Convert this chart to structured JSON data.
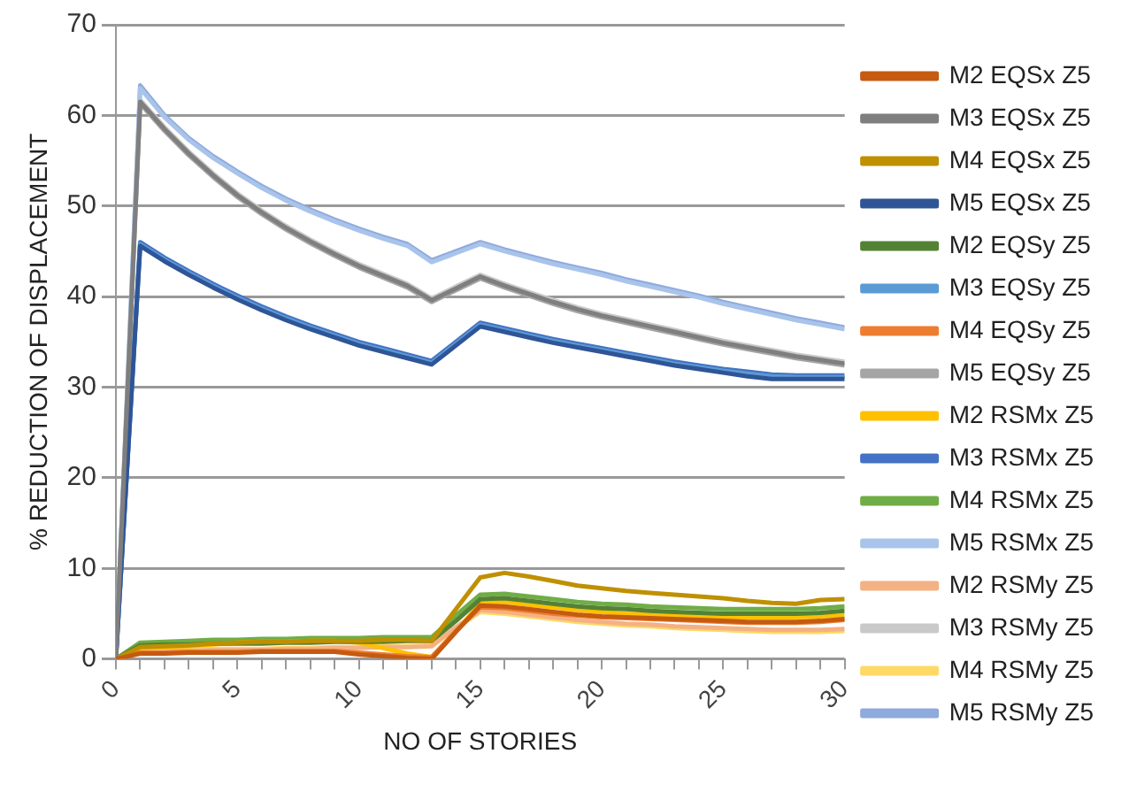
{
  "chart_data": {
    "type": "line",
    "xlabel": "NO OF STORIES",
    "ylabel": "% REDUCTION OF DISPLACEMENT",
    "x": [
      0,
      1,
      2,
      3,
      4,
      5,
      6,
      7,
      8,
      9,
      10,
      11,
      12,
      13,
      14,
      15,
      16,
      17,
      18,
      19,
      20,
      21,
      22,
      23,
      24,
      25,
      26,
      27,
      28,
      29,
      30
    ],
    "xlim": [
      0,
      30
    ],
    "xticks": [
      0,
      {
        "value": 1,
        "label": null
      },
      {
        "value": 2,
        "label": null
      },
      {
        "value": 3,
        "label": null
      },
      {
        "value": 4,
        "label": null
      },
      5,
      {
        "value": 6,
        "label": null
      },
      {
        "value": 7,
        "label": null
      },
      {
        "value": 8,
        "label": null
      },
      {
        "value": 9,
        "label": null
      },
      10,
      {
        "value": 11,
        "label": null
      },
      {
        "value": 12,
        "label": null
      },
      {
        "value": 13,
        "label": null
      },
      {
        "value": 14,
        "label": null
      },
      15,
      {
        "value": 16,
        "label": null
      },
      {
        "value": 17,
        "label": null
      },
      {
        "value": 18,
        "label": null
      },
      {
        "value": 19,
        "label": null
      },
      20,
      {
        "value": 21,
        "label": null
      },
      {
        "value": 22,
        "label": null
      },
      {
        "value": 23,
        "label": null
      },
      {
        "value": 24,
        "label": null
      },
      25,
      {
        "value": 26,
        "label": null
      },
      {
        "value": 27,
        "label": null
      },
      {
        "value": 28,
        "label": null
      },
      {
        "value": 29,
        "label": null
      },
      30
    ],
    "ylim": [
      0,
      70
    ],
    "yticks": [
      0,
      10,
      20,
      30,
      40,
      50,
      60,
      70
    ],
    "grid": "y",
    "legend": "right",
    "series": [
      {
        "name": "M2 EQSx Z5",
        "color": "#c55a11",
        "values": [
          0,
          0.6,
          0.6,
          0.7,
          0.7,
          0.7,
          0.8,
          0.8,
          0.8,
          0.8,
          0.5,
          0.3,
          0.1,
          0,
          3,
          5.9,
          5.8,
          5.5,
          5.2,
          4.9,
          4.7,
          4.6,
          4.5,
          4.4,
          4.3,
          4.2,
          4.1,
          4.1,
          4.1,
          4.2,
          4.4
        ]
      },
      {
        "name": "M3 EQSx Z5",
        "color": "#7f7f7f",
        "values": [
          0,
          61.5,
          58.5,
          55.8,
          53.4,
          51.2,
          49.3,
          47.6,
          46.1,
          44.7,
          43.4,
          42.3,
          41.2,
          39.6,
          40.9,
          42.2,
          41.2,
          40.3,
          39.4,
          38.6,
          37.9,
          37.3,
          36.7,
          36.1,
          35.5,
          34.9,
          34.4,
          33.9,
          33.4,
          33,
          32.6
        ]
      },
      {
        "name": "M4 EQSx Z5",
        "color": "#bf9000",
        "values": [
          0,
          1.3,
          1.4,
          1.5,
          1.7,
          1.8,
          1.9,
          1.9,
          2,
          2,
          2,
          2.1,
          2.1,
          2,
          5.5,
          9,
          9.5,
          9.1,
          8.6,
          8.1,
          7.8,
          7.5,
          7.3,
          7.1,
          6.9,
          6.7,
          6.4,
          6.2,
          6.1,
          6.5,
          6.6
        ]
      },
      {
        "name": "M5 EQSx Z5",
        "color": "#2f5597",
        "values": [
          0,
          45.6,
          43.9,
          42.4,
          41,
          39.7,
          38.5,
          37.4,
          36.4,
          35.5,
          34.6,
          33.9,
          33.2,
          32.5,
          34.6,
          36.7,
          36.1,
          35.5,
          34.9,
          34.4,
          33.9,
          33.4,
          32.9,
          32.4,
          32,
          31.6,
          31.2,
          30.9,
          30.9,
          30.9,
          30.9
        ]
      },
      {
        "name": "M2 EQSy Z5",
        "color": "#548235",
        "values": [
          0,
          1.5,
          1.6,
          1.6,
          1.7,
          1.7,
          1.7,
          1.8,
          1.8,
          1.9,
          1.9,
          1.9,
          2,
          2,
          4.2,
          6.6,
          6.7,
          6.4,
          6.1,
          5.8,
          5.6,
          5.5,
          5.3,
          5.2,
          5.1,
          5,
          5,
          5,
          5,
          5.1,
          5.3
        ]
      },
      {
        "name": "M3 EQSy Z5",
        "color": "#5b9bd5",
        "values": [
          0,
          45.8,
          44.1,
          42.6,
          41.2,
          39.9,
          38.7,
          37.6,
          36.6,
          35.7,
          34.8,
          34.1,
          33.4,
          32.7,
          34.8,
          36.9,
          36.3,
          35.7,
          35.1,
          34.6,
          34.1,
          33.6,
          33.1,
          32.6,
          32.2,
          31.8,
          31.5,
          31.2,
          31.1,
          31.1,
          31.1
        ]
      },
      {
        "name": "M4 EQSy Z5",
        "color": "#ed7d31",
        "values": [
          0,
          0.7,
          0.7,
          0.8,
          0.8,
          0.8,
          0.9,
          0.9,
          0.9,
          0.9,
          0.7,
          0.5,
          0.3,
          0.2,
          3.1,
          5.7,
          5.6,
          5.3,
          5,
          4.8,
          4.6,
          4.5,
          4.4,
          4.3,
          4.2,
          4.1,
          4,
          4,
          4,
          4.1,
          4.3
        ]
      },
      {
        "name": "M5 EQSy Z5",
        "color": "#a5a5a5",
        "values": [
          0,
          61.3,
          58.3,
          55.6,
          53.2,
          51,
          49.1,
          47.4,
          45.9,
          44.5,
          43.2,
          42.1,
          41,
          39.4,
          40.7,
          42,
          41,
          40.1,
          39.2,
          38.4,
          37.7,
          37.1,
          36.5,
          35.9,
          35.3,
          34.7,
          34.2,
          33.7,
          33.2,
          32.8,
          32.4
        ]
      },
      {
        "name": "M2 RSMx Z5",
        "color": "#ffc000",
        "values": [
          0,
          1.2,
          1.3,
          1.4,
          1.6,
          1.8,
          1.9,
          1.9,
          2,
          2,
          1.8,
          1.2,
          0.6,
          0.2,
          3,
          6.2,
          6.3,
          6,
          5.7,
          5.4,
          5.2,
          5,
          4.9,
          4.8,
          4.7,
          4.6,
          4.6,
          4.6,
          4.6,
          4.7,
          4.8
        ]
      },
      {
        "name": "M3 RSMx Z5",
        "color": "#4472c4",
        "values": [
          0,
          46,
          44.3,
          42.8,
          41.4,
          40.1,
          38.9,
          37.8,
          36.8,
          35.9,
          35,
          34.3,
          33.6,
          32.9,
          35,
          37.1,
          36.5,
          35.9,
          35.3,
          34.8,
          34.3,
          33.8,
          33.3,
          32.8,
          32.4,
          32,
          31.7,
          31.4,
          31.3,
          31.3,
          31.3
        ]
      },
      {
        "name": "M4 RSMx Z5",
        "color": "#70ad47",
        "values": [
          0,
          1.8,
          1.9,
          2,
          2.1,
          2.1,
          2.2,
          2.2,
          2.3,
          2.3,
          2.3,
          2.4,
          2.4,
          2.4,
          4.8,
          7.1,
          7.2,
          6.9,
          6.6,
          6.3,
          6.1,
          6,
          5.8,
          5.7,
          5.6,
          5.5,
          5.5,
          5.5,
          5.5,
          5.6,
          5.8
        ]
      },
      {
        "name": "M5 RSMx Z5",
        "color": "#a9c4eb",
        "values": [
          0,
          63,
          59.8,
          57.3,
          55.3,
          53.6,
          52,
          50.6,
          49.4,
          48.3,
          47.3,
          46.4,
          45.6,
          43.8,
          44.8,
          45.8,
          45,
          44.3,
          43.6,
          43,
          42.4,
          41.7,
          41.1,
          40.5,
          39.9,
          39.2,
          38.6,
          38,
          37.4,
          36.9,
          36.4
        ]
      },
      {
        "name": "M2 RSMy Z5",
        "color": "#f4b183",
        "values": [
          0,
          0.8,
          0.9,
          0.9,
          1,
          1,
          1,
          1.1,
          1.1,
          1.2,
          1.2,
          1.3,
          1.3,
          1.4,
          3.5,
          5.4,
          5.2,
          4.9,
          4.6,
          4.3,
          4.1,
          3.9,
          3.8,
          3.6,
          3.5,
          3.4,
          3.3,
          3.2,
          3.2,
          3.2,
          3.3
        ]
      },
      {
        "name": "M3 RSMy Z5",
        "color": "#c9c9c9",
        "values": [
          0,
          61.7,
          58.7,
          56,
          53.6,
          51.4,
          49.5,
          47.8,
          46.3,
          44.9,
          43.6,
          42.5,
          41.4,
          39.8,
          41.1,
          42.4,
          41.4,
          40.5,
          39.6,
          38.8,
          38.1,
          37.5,
          36.9,
          36.3,
          35.7,
          35.1,
          34.6,
          34.1,
          33.6,
          33.2,
          32.8
        ]
      },
      {
        "name": "M4 RSMy Z5",
        "color": "#ffd966",
        "values": [
          0,
          0.9,
          1,
          1,
          1.1,
          1.1,
          1.1,
          1.2,
          1.2,
          1.3,
          1.3,
          1.4,
          1.4,
          1.5,
          3.4,
          5.2,
          5,
          4.7,
          4.4,
          4.1,
          3.9,
          3.7,
          3.6,
          3.4,
          3.3,
          3.2,
          3.1,
          3,
          3,
          3,
          3.1
        ]
      },
      {
        "name": "M5 RSMy Z5",
        "color": "#8faadc",
        "values": [
          0,
          63.3,
          60,
          57.5,
          55.5,
          53.8,
          52.2,
          50.8,
          49.6,
          48.5,
          47.5,
          46.6,
          45.8,
          44,
          45,
          46,
          45.2,
          44.5,
          43.8,
          43.2,
          42.6,
          41.9,
          41.3,
          40.7,
          40.1,
          39.4,
          38.8,
          38.2,
          37.6,
          37.1,
          36.6
        ]
      }
    ]
  }
}
